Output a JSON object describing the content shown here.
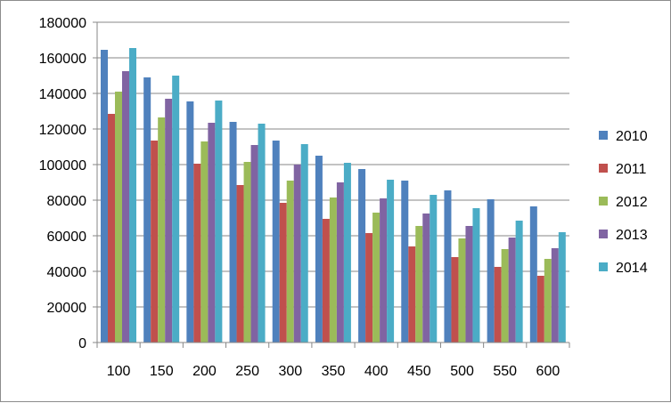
{
  "chart_data": {
    "type": "bar",
    "title": "",
    "xlabel": "",
    "ylabel": "",
    "categories": [
      "100",
      "150",
      "200",
      "250",
      "300",
      "350",
      "400",
      "450",
      "500",
      "550",
      "600"
    ],
    "ylim": [
      0,
      180000
    ],
    "yticks": [
      0,
      20000,
      40000,
      60000,
      80000,
      100000,
      120000,
      140000,
      160000,
      180000
    ],
    "ytick_labels": [
      "0",
      "20000",
      "40000",
      "60000",
      "80000",
      "100000",
      "120000",
      "140000",
      "160000",
      "180000"
    ],
    "grid": true,
    "legend_position": "right",
    "series": [
      {
        "name": "2010",
        "color": "#4F81BD",
        "values": [
          164500,
          149000,
          135500,
          124000,
          113500,
          105000,
          97500,
          91000,
          85500,
          80500,
          76500
        ]
      },
      {
        "name": "2011",
        "color": "#C0504D",
        "values": [
          128500,
          113500,
          100500,
          88500,
          78500,
          69500,
          61500,
          54000,
          48000,
          42500,
          37500
        ]
      },
      {
        "name": "2012",
        "color": "#9BBB59",
        "values": [
          141000,
          126500,
          113000,
          101500,
          91000,
          81500,
          73000,
          65500,
          58500,
          52500,
          47000
        ]
      },
      {
        "name": "2013",
        "color": "#8064A2",
        "values": [
          152500,
          137000,
          123500,
          111000,
          100000,
          90000,
          81000,
          72500,
          65500,
          59000,
          53000
        ]
      },
      {
        "name": "2014",
        "color": "#4BACC6",
        "values": [
          165500,
          150000,
          136000,
          123000,
          111500,
          101000,
          91500,
          83000,
          75500,
          68500,
          62000
        ]
      }
    ]
  }
}
